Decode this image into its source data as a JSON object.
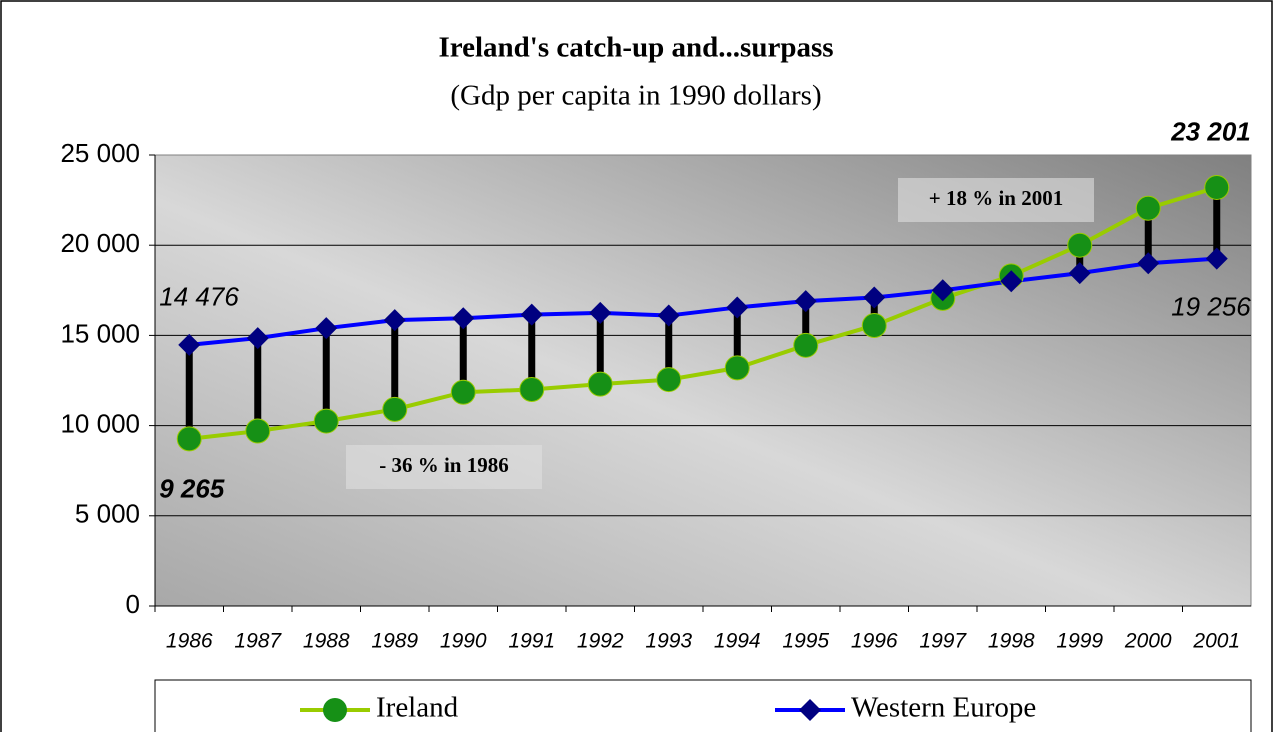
{
  "chart_data": {
    "type": "line",
    "title": "Ireland's catch-up and...surpass",
    "subtitle": "(Gdp per capita in 1990 dollars)",
    "categories": [
      "1986",
      "1987",
      "1988",
      "1989",
      "1990",
      "1991",
      "1992",
      "1993",
      "1994",
      "1995",
      "1996",
      "1997",
      "1998",
      "1999",
      "2000",
      "2001"
    ],
    "series": [
      {
        "name": "Ireland",
        "color": "#99cc00",
        "marker_color": "#169016",
        "values": [
          9265,
          9700,
          10250,
          10900,
          11850,
          12000,
          12300,
          12550,
          13200,
          14450,
          15550,
          17050,
          18300,
          20000,
          22050,
          23201
        ],
        "value_labels": [
          "9 265",
          null,
          null,
          null,
          null,
          null,
          null,
          null,
          null,
          null,
          null,
          null,
          null,
          null,
          null,
          "23 201"
        ]
      },
      {
        "name": "Western Europe",
        "color": "#0000ff",
        "marker_color": "#000080",
        "values": [
          14476,
          14850,
          15400,
          15850,
          15950,
          16150,
          16250,
          16100,
          16550,
          16900,
          17100,
          17500,
          18000,
          18450,
          19000,
          19256
        ],
        "value_labels": [
          "14 476",
          null,
          null,
          null,
          null,
          null,
          null,
          null,
          null,
          null,
          null,
          null,
          null,
          null,
          null,
          "19 256"
        ]
      }
    ],
    "annotations": [
      "- 36 % in 1986",
      "+ 18 % in 2001"
    ],
    "ylim": [
      0,
      25000
    ],
    "yticks": [
      {
        "value": 0,
        "label": "0"
      },
      {
        "value": 5000,
        "label": "5 000"
      },
      {
        "value": 10000,
        "label": "10 000"
      },
      {
        "value": 15000,
        "label": "15 000"
      },
      {
        "value": 20000,
        "label": "20 000"
      },
      {
        "value": 25000,
        "label": "25 000"
      }
    ],
    "grid": true,
    "legend": "bottom"
  }
}
